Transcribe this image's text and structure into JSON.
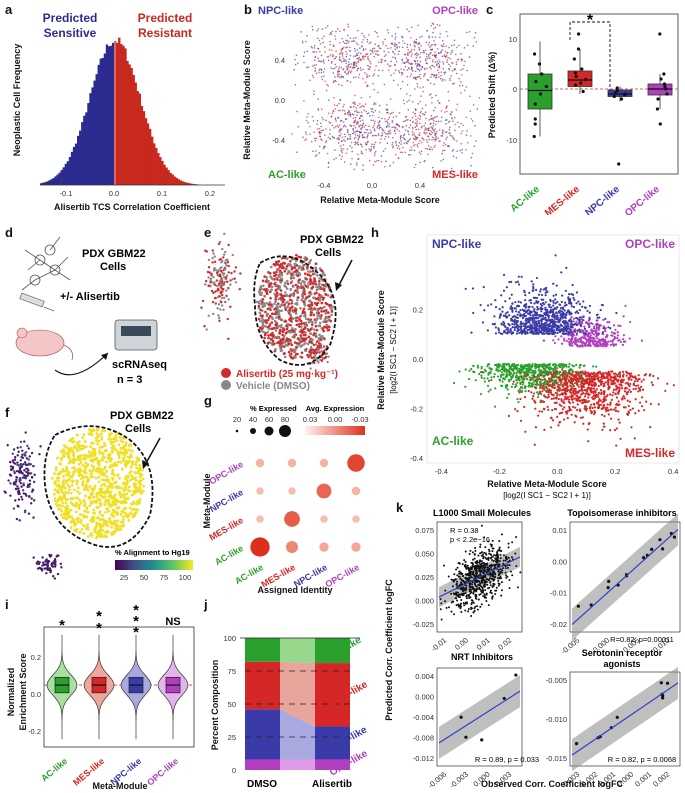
{
  "colors": {
    "ac": "#2ca02c",
    "mes": "#d62728",
    "npc": "#3a3aa8",
    "opc": "#b13fc0",
    "sensitive": "#2b2b8f",
    "resistant": "#c8281e",
    "grey": "#888888"
  },
  "panel_labels": [
    "a",
    "b",
    "c",
    "d",
    "e",
    "f",
    "g",
    "h",
    "i",
    "j",
    "k"
  ],
  "panel_a": {
    "chart_data": {
      "type": "bar",
      "title": "",
      "xlabel": "Alisertib TCS Correlation Coefficient",
      "ylabel": "Neoplastic Cell Frequency",
      "xlim": [
        -0.15,
        0.22
      ],
      "xticks": [
        "-0.1",
        "0.0",
        "0.1",
        "0.2"
      ],
      "annotations": [
        "Predicted Sensitive",
        "Predicted Resistant"
      ],
      "mean": 0.0,
      "sd": 0.05
    },
    "label_sensitive_1": "Predicted",
    "label_sensitive_2": "Sensitive",
    "label_resistant_1": "Predicted",
    "label_resistant_2": "Resistant"
  },
  "panel_b": {
    "chart_data": {
      "type": "scatter",
      "xlabel": "Relative Meta-Module Score",
      "ylabel": "Relative Meta-Module Score",
      "xlim": [
        -0.6,
        0.6
      ],
      "ylim": [
        -0.55,
        0.6
      ],
      "xticks": [
        "-0.4",
        "0.0",
        "0.4"
      ],
      "yticks": [
        "-0.4",
        "0.0",
        "0.4"
      ],
      "series": [
        {
          "name": "Vehicle",
          "color": "#3a3aa8"
        },
        {
          "name": "Alisertib",
          "color": "#d62728"
        }
      ],
      "quadrants": [
        "NPC-like",
        "OPC-like",
        "AC-like",
        "MES-like"
      ]
    }
  },
  "panel_c": {
    "chart_data": {
      "type": "box",
      "ylabel": "Predicted Shift (Δ%)",
      "categories": [
        "AC-like",
        "MES-like",
        "NPC-like",
        "OPC-like"
      ],
      "ylim": [
        -17,
        15
      ],
      "yticks": [
        "10",
        "0",
        "-10"
      ],
      "boxes": [
        {
          "q1": -4,
          "median": -0.3,
          "q3": 3,
          "lo": -9.5,
          "hi": 9.5,
          "points": [
            -9.5,
            -7,
            -6,
            -3,
            -1,
            0.5,
            1.5,
            3,
            5,
            7
          ]
        },
        {
          "q1": 0.5,
          "median": 1.8,
          "q3": 3.6,
          "lo": -1,
          "hi": 8,
          "points": [
            -0.5,
            0.8,
            1.2,
            1.9,
            2.5,
            3.2,
            4,
            6,
            8,
            11
          ]
        },
        {
          "q1": -1.5,
          "median": -1,
          "q3": -0.2,
          "lo": -2.5,
          "hi": 0.5,
          "points": [
            -2,
            -1.5,
            -1.2,
            -1,
            -0.8,
            -0.3,
            0.2,
            -15
          ]
        },
        {
          "q1": -1.2,
          "median": 0,
          "q3": 1,
          "lo": -4,
          "hi": 3,
          "points": [
            -7,
            -4,
            -2,
            -1,
            0,
            0.5,
            1,
            2,
            3,
            11
          ]
        }
      ],
      "significance": "*"
    }
  },
  "panel_d": {
    "title_1": "PDX GBM22",
    "title_2": "Cells",
    "treatment": "+/- Alisertib",
    "method": "scRNAseq",
    "n": "n = 3"
  },
  "panel_e": {
    "title_1": "PDX GBM22",
    "title_2": "Cells",
    "legend_alisertib": "Alisertib (25 mg·kg⁻¹)",
    "legend_vehicle": "Vehicle (DMSO)"
  },
  "panel_f": {
    "title_1": "PDX GBM22",
    "title_2": "Cells",
    "legend_title": "% Alignment to Hg19",
    "legend_ticks": [
      "25",
      "50",
      "75",
      "100"
    ]
  },
  "panel_g": {
    "chart_data": {
      "type": "heatmap",
      "xlabel": "Assigned Identity",
      "ylabel": "Meta-Module",
      "rows": [
        "OPC-like",
        "NPC-like",
        "MES-like",
        "AC-like"
      ],
      "cols": [
        "AC-like",
        "MES-like",
        "NPC-like",
        "OPC-like"
      ],
      "size_legend_title": "% Expressed",
      "size_ticks": [
        "20",
        "40",
        "60",
        "80"
      ],
      "color_legend_title": "Avg. Expression",
      "color_ticks": [
        "0.03",
        "0.00",
        "-0.03"
      ],
      "dots": [
        [
          0.25,
          0.25,
          0.25,
          0.75
        ],
        [
          0.2,
          0.2,
          0.6,
          0.25
        ],
        [
          0.2,
          0.65,
          0.2,
          0.2
        ],
        [
          0.85,
          0.45,
          0.3,
          0.3
        ]
      ]
    }
  },
  "panel_h": {
    "chart_data": {
      "type": "scatter",
      "xlabel": "Relative Meta-Module Score",
      "ylabel": "Relative Meta-Module Score",
      "xsub": "[log2(I SC1 − SC2 I + 1)]",
      "ysub": "[log2(I SC1 − SC2 I + 1)]",
      "xlim": [
        -0.45,
        0.42
      ],
      "ylim": [
        -0.42,
        0.5
      ],
      "xticks": [
        "-0.4",
        "-0.2",
        "0.0",
        "0.2",
        "0.4"
      ],
      "yticks": [
        "0.2",
        "0.0",
        "-0.2",
        "-0.4"
      ],
      "quadrants": [
        "NPC-like",
        "OPC-like",
        "AC-like",
        "MES-like"
      ]
    }
  },
  "panel_i": {
    "chart_data": {
      "type": "violin",
      "xlabel": "Meta-Module",
      "ylabel": "Normalized Enrichment Score",
      "categories": [
        "AC-like",
        "MES-like",
        "NPC-like",
        "OPC-like"
      ],
      "ylim": [
        -0.32,
        0.3
      ],
      "yticks": [
        "0.2",
        "0.0",
        "-0.2"
      ],
      "significance": [
        "*",
        "**",
        "***",
        "NS"
      ]
    }
  },
  "panel_j": {
    "chart_data": {
      "type": "bar",
      "ylabel": "Percent Composition",
      "categories": [
        "DMSO",
        "Alisertib"
      ],
      "yticks": [
        "100",
        "75",
        "50",
        "25",
        "0"
      ],
      "series": [
        {
          "name": "OPC-like",
          "values": [
            8,
            8
          ]
        },
        {
          "name": "NPC-like",
          "values": [
            38,
            25
          ]
        },
        {
          "name": "MES-like",
          "values": [
            36,
            48
          ]
        },
        {
          "name": "AC-like",
          "values": [
            18,
            19
          ]
        }
      ]
    }
  },
  "panel_k": {
    "ylabel": "Predicted Corr. Coefficient logFC",
    "xlabel": "Observed Corr. Coefficient logFC",
    "subplots": [
      {
        "title": "L1000 Small Molecules",
        "stat1": "R = 0.38",
        "stat2": "p < 2.2e−16",
        "xticks": [
          "-0.01",
          "0.00",
          "0.01",
          "0.02"
        ],
        "yticks": [
          "0.075",
          "0.050",
          "0.025",
          "0.000",
          "-0.025"
        ]
      },
      {
        "title": "Topoisomerase inhibitors",
        "stat1": "R=0.82, p=0.00011",
        "xticks": [
          "-0.005",
          "0.000",
          "0.005",
          "0.010"
        ],
        "yticks": [
          "0.01",
          "0.00",
          "-0.01",
          "-0.02"
        ]
      },
      {
        "title": "NRT Inhibitors",
        "stat1": "R = 0.89, p = 0.033",
        "xticks": [
          "-0.006",
          "-0.003",
          "0.000",
          "0.003"
        ],
        "yticks": [
          "0.004",
          "0.000",
          "-0.004",
          "-0.008",
          "-0.012"
        ]
      },
      {
        "title": "Serotonin receptor",
        "title2": "agonists",
        "stat1": "R = 0.82, p = 0.0068",
        "xticks": [
          "-0.003",
          "-0.002",
          "-0.001",
          "0.000",
          "0.001",
          "0.002"
        ],
        "yticks": [
          "-0.005",
          "-0.010",
          "-0.015"
        ]
      }
    ]
  },
  "quad_labels": {
    "npc": "NPC-like",
    "opc": "OPC-like",
    "ac": "AC-like",
    "mes": "MES-like"
  },
  "cat_labels": {
    "ac": "AC-like",
    "mes": "MES-like",
    "npc": "NPC-like",
    "opc": "OPC-like"
  },
  "j_labels": {
    "dmso": "DMSO",
    "alisertib": "Alisertib"
  }
}
